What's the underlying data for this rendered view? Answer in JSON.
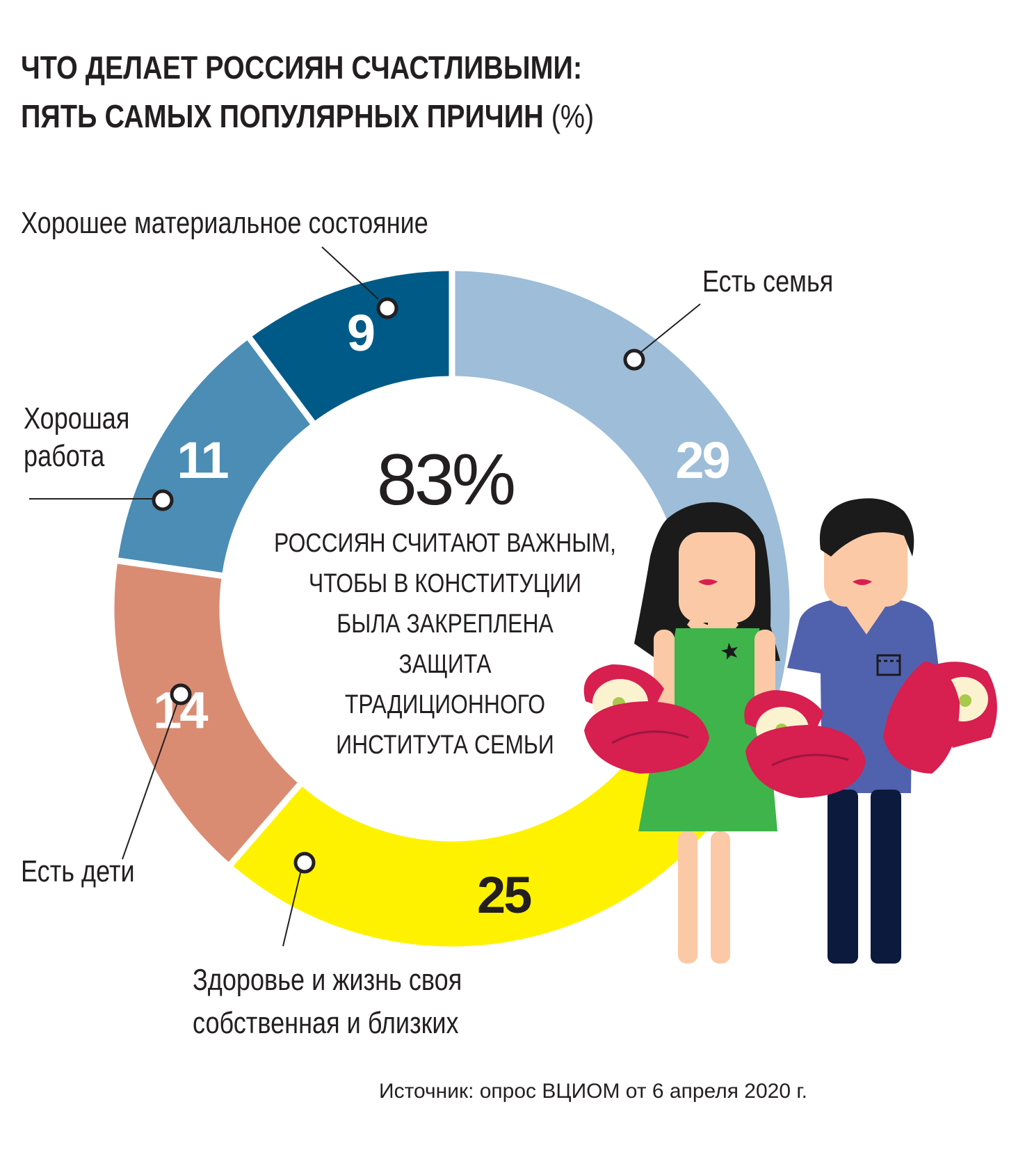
{
  "title": {
    "line1": "ЧТО ДЕЛАЕТ РОССИЯН СЧАСТЛИВЫМИ:",
    "line2": "ПЯТЬ САМЫХ  ПОПУЛЯРНЫХ ПРИЧИН",
    "unit": "(%)"
  },
  "chart_data": {
    "type": "pie",
    "variant": "donut",
    "categories": [
      "Есть семья",
      "Здоровье и жизнь своя собственная и близких",
      "Есть дети",
      "Хорошая работа",
      "Хорошее материальное состояние"
    ],
    "values": [
      29,
      25,
      14,
      11,
      9
    ],
    "value_labels": [
      "29",
      "25",
      "14",
      "11",
      "9"
    ],
    "colors": [
      "#9dbdd8",
      "#fff200",
      "#d98c72",
      "#4b8db4",
      "#005a87"
    ],
    "label_colors": [
      "#ffffff",
      "#231f20",
      "#ffffff",
      "#ffffff",
      "#ffffff"
    ]
  },
  "labels": {
    "family": "Есть семья",
    "health_line1": "Здоровье и жизнь своя",
    "health_line2": "собственная и близких",
    "children": "Есть дети",
    "work_line1": "Хорошая",
    "work_line2": "работа",
    "money": "Хорошее материальное состояние"
  },
  "center": {
    "percent": "83%",
    "lines": [
      "РОССИЯН СЧИТАЮТ ВАЖНЫМ,",
      "ЧТОБЫ В КОНСТИТУЦИИ",
      "БЫЛА ЗАКРЕПЛЕНА",
      "ЗАЩИТА",
      "ТРАДИЦИОННОГО",
      "ИНСТИТУТА СЕМЬИ"
    ]
  },
  "illustration": {
    "description": "family-with-babies",
    "colors": {
      "skin": "#fbc9a6",
      "hair": "#1b1b1b",
      "dress": "#3eb44a",
      "shirt": "#5062ad",
      "trousers": "#0b1a3d",
      "blanket": "#d71f50",
      "lips": "#d71f50"
    }
  },
  "source": "Источник: опрос ВЦИОМ от 6 апреля 2020 г."
}
